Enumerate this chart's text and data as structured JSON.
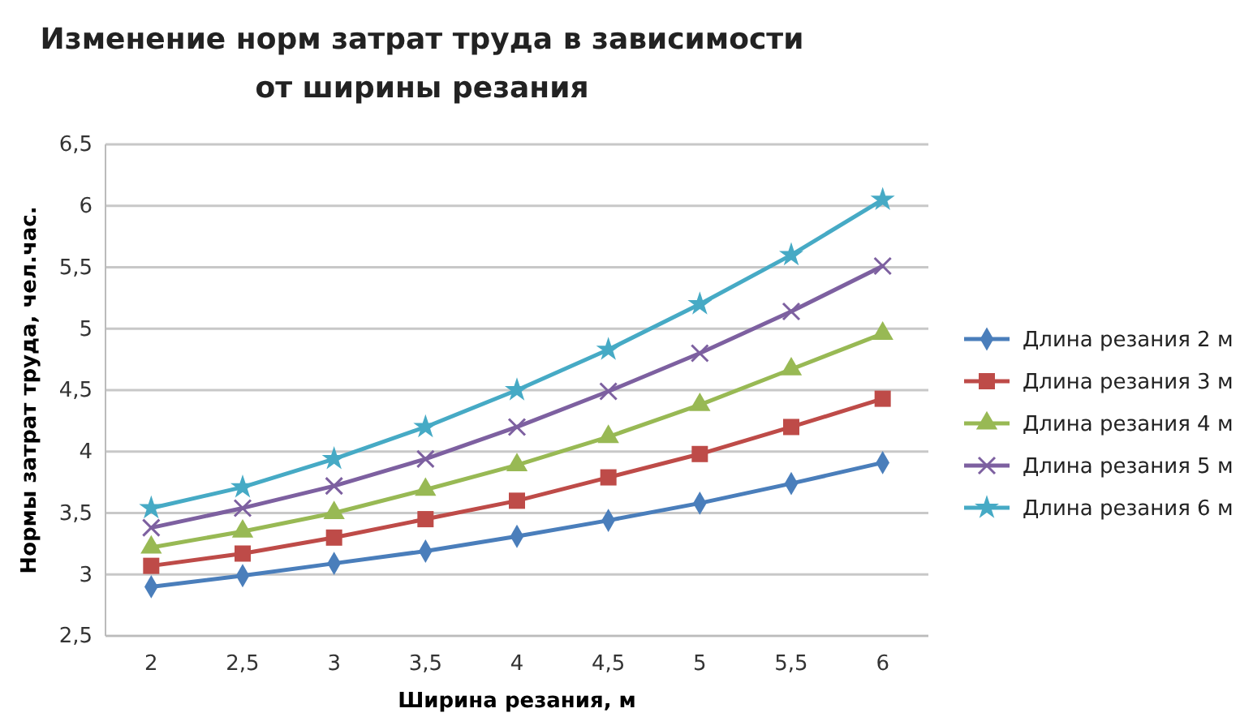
{
  "chart_data": {
    "type": "line",
    "title": "Изменение норм затрат труда в зависимости от ширины резания",
    "xlabel": "Ширина резания, м",
    "ylabel": "Нормы затрат труда, чел.час.",
    "categories": [
      "2",
      "2,5",
      "3",
      "3,5",
      "4",
      "4,5",
      "5",
      "5,5",
      "6"
    ],
    "series": [
      {
        "name": "Длина резания 2 м",
        "color": "#4a7ebb",
        "marker": "diamond",
        "values": [
          2.9,
          2.99,
          3.09,
          3.19,
          3.31,
          3.44,
          3.58,
          3.74,
          3.91
        ]
      },
      {
        "name": "Длина резания 3 м",
        "color": "#be4b48",
        "marker": "square",
        "values": [
          3.07,
          3.17,
          3.3,
          3.45,
          3.6,
          3.79,
          3.98,
          4.2,
          4.43
        ]
      },
      {
        "name": "Длина резания 4 м",
        "color": "#98b954",
        "marker": "triangle",
        "values": [
          3.22,
          3.35,
          3.5,
          3.69,
          3.89,
          4.12,
          4.38,
          4.67,
          4.96
        ]
      },
      {
        "name": "Длина резания 5 м",
        "color": "#7d60a0",
        "marker": "cross",
        "values": [
          3.38,
          3.54,
          3.72,
          3.94,
          4.2,
          4.49,
          4.8,
          5.14,
          5.51
        ]
      },
      {
        "name": "Длина резания 6 м",
        "color": "#46aac5",
        "marker": "star",
        "values": [
          3.54,
          3.71,
          3.94,
          4.2,
          4.5,
          4.83,
          5.2,
          5.6,
          6.05
        ]
      }
    ],
    "ylim": [
      2.5,
      6.5
    ],
    "yticks": [
      {
        "value": 2.5,
        "label": "2,5"
      },
      3,
      {
        "value": 3.5,
        "label": "3,5"
      },
      4,
      {
        "value": 4.5,
        "label": "4,5"
      },
      5,
      {
        "value": 5.5,
        "label": "5,5"
      },
      6,
      {
        "value": 6.5,
        "label": "6,5"
      }
    ],
    "grid": "y",
    "legend": "right",
    "line_style": "solid"
  }
}
